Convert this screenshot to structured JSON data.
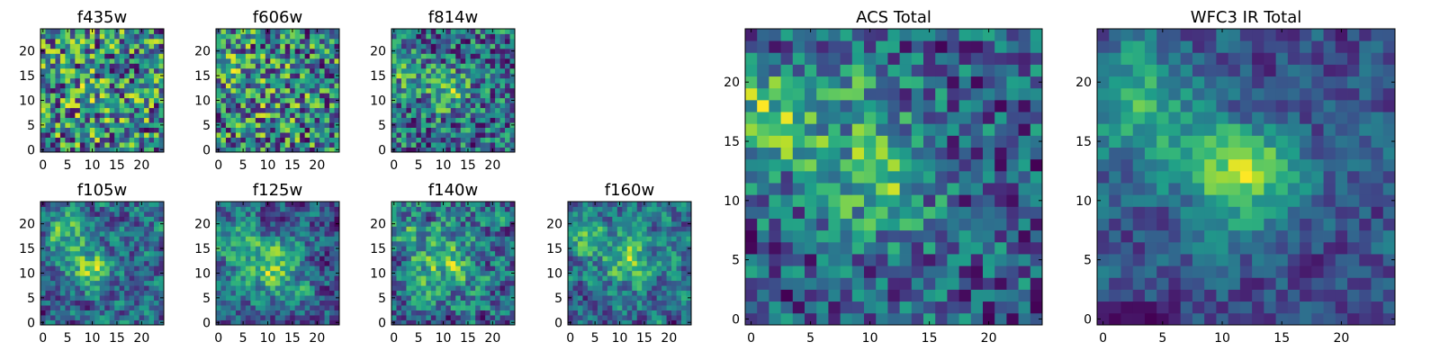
{
  "chart_data": [
    {
      "type": "heatmap",
      "title": "f435w",
      "x_ticks": [
        "0",
        "5",
        "10",
        "15",
        "20"
      ],
      "y_ticks": [
        "0",
        "5",
        "10",
        "15",
        "20"
      ],
      "xlim": [
        -0.5,
        24.5
      ],
      "ylim": [
        -0.5,
        24.5
      ],
      "grid_size": [
        25,
        25
      ],
      "colormap": "viridis"
    },
    {
      "type": "heatmap",
      "title": "f606w",
      "x_ticks": [
        "0",
        "5",
        "10",
        "15",
        "20"
      ],
      "y_ticks": [
        "0",
        "5",
        "10",
        "15",
        "20"
      ],
      "xlim": [
        -0.5,
        24.5
      ],
      "ylim": [
        -0.5,
        24.5
      ],
      "grid_size": [
        25,
        25
      ],
      "colormap": "viridis"
    },
    {
      "type": "heatmap",
      "title": "f814w",
      "x_ticks": [
        "0",
        "5",
        "10",
        "15",
        "20"
      ],
      "y_ticks": [
        "0",
        "5",
        "10",
        "15",
        "20"
      ],
      "xlim": [
        -0.5,
        24.5
      ],
      "ylim": [
        -0.5,
        24.5
      ],
      "grid_size": [
        25,
        25
      ],
      "colormap": "viridis"
    },
    {
      "type": "heatmap",
      "title": "f105w",
      "x_ticks": [
        "0",
        "5",
        "10",
        "15",
        "20"
      ],
      "y_ticks": [
        "0",
        "5",
        "10",
        "15",
        "20"
      ],
      "xlim": [
        -0.5,
        24.5
      ],
      "ylim": [
        -0.5,
        24.5
      ],
      "grid_size": [
        25,
        25
      ],
      "colormap": "viridis"
    },
    {
      "type": "heatmap",
      "title": "f125w",
      "x_ticks": [
        "0",
        "5",
        "10",
        "15",
        "20"
      ],
      "y_ticks": [
        "0",
        "5",
        "10",
        "15",
        "20"
      ],
      "xlim": [
        -0.5,
        24.5
      ],
      "ylim": [
        -0.5,
        24.5
      ],
      "grid_size": [
        25,
        25
      ],
      "colormap": "viridis"
    },
    {
      "type": "heatmap",
      "title": "f140w",
      "x_ticks": [
        "0",
        "5",
        "10",
        "15",
        "20"
      ],
      "y_ticks": [
        "0",
        "5",
        "10",
        "15",
        "20"
      ],
      "xlim": [
        -0.5,
        24.5
      ],
      "ylim": [
        -0.5,
        24.5
      ],
      "grid_size": [
        25,
        25
      ],
      "colormap": "viridis"
    },
    {
      "type": "heatmap",
      "title": "f160w",
      "x_ticks": [
        "0",
        "5",
        "10",
        "15",
        "20"
      ],
      "y_ticks": [
        "0",
        "5",
        "10",
        "15",
        "20"
      ],
      "xlim": [
        -0.5,
        24.5
      ],
      "ylim": [
        -0.5,
        24.5
      ],
      "grid_size": [
        25,
        25
      ],
      "colormap": "viridis"
    },
    {
      "type": "heatmap",
      "title": "ACS Total",
      "x_ticks": [
        "0",
        "5",
        "10",
        "15",
        "20"
      ],
      "y_ticks": [
        "0",
        "5",
        "10",
        "15",
        "20"
      ],
      "xlim": [
        -0.5,
        24.5
      ],
      "ylim": [
        -0.5,
        24.5
      ],
      "grid_size": [
        25,
        25
      ],
      "colormap": "viridis"
    },
    {
      "type": "heatmap",
      "title": "WFC3 IR Total",
      "x_ticks": [
        "0",
        "5",
        "10",
        "15",
        "20"
      ],
      "y_ticks": [
        "0",
        "5",
        "10",
        "15",
        "20"
      ],
      "xlim": [
        -0.5,
        24.5
      ],
      "ylim": [
        -0.5,
        24.5
      ],
      "grid_size": [
        25,
        25
      ],
      "colormap": "viridis"
    }
  ]
}
